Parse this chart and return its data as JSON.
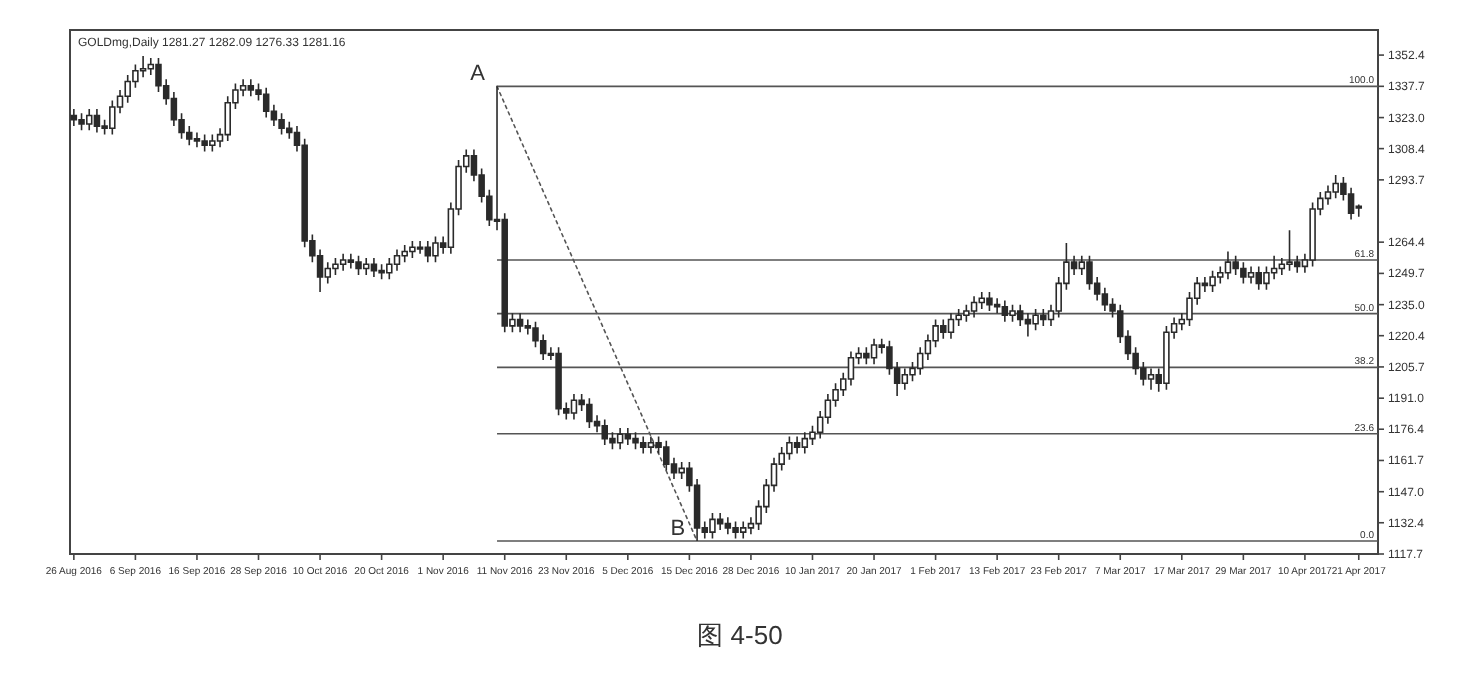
{
  "chart_data": {
    "type": "candlestick",
    "title": "GOLDmg,Daily  1281.27 1282.09 1276.33 1281.16",
    "categories": [
      "26 Aug 2016",
      null,
      null,
      null,
      null,
      null,
      null,
      null,
      "6 Sep 2016",
      null,
      null,
      null,
      null,
      null,
      null,
      null,
      "16 Sep 2016",
      null,
      null,
      null,
      null,
      null,
      null,
      null,
      "28 Sep 2016",
      null,
      null,
      null,
      null,
      null,
      null,
      null,
      "10 Oct 2016",
      null,
      null,
      null,
      null,
      null,
      null,
      null,
      "20 Oct 2016",
      null,
      null,
      null,
      null,
      null,
      null,
      null,
      "1 Nov 2016",
      null,
      null,
      null,
      null,
      null,
      null,
      null,
      "11 Nov 2016",
      null,
      null,
      null,
      null,
      null,
      null,
      null,
      "23 Nov 2016",
      null,
      null,
      null,
      null,
      null,
      null,
      null,
      "5 Dec 2016",
      null,
      null,
      null,
      null,
      null,
      null,
      null,
      "15 Dec 2016",
      null,
      null,
      null,
      null,
      null,
      null,
      null,
      "28 Dec 2016",
      null,
      null,
      null,
      null,
      null,
      null,
      null,
      "10 Jan 2017",
      null,
      null,
      null,
      null,
      null,
      null,
      null,
      "20 Jan 2017",
      null,
      null,
      null,
      null,
      null,
      null,
      null,
      "1 Feb 2017",
      null,
      null,
      null,
      null,
      null,
      null,
      null,
      "13 Feb 2017",
      null,
      null,
      null,
      null,
      null,
      null,
      null,
      "23 Feb 2017",
      null,
      null,
      null,
      null,
      null,
      null,
      null,
      "7 Mar 2017",
      null,
      null,
      null,
      null,
      null,
      null,
      null,
      "17 Mar 2017",
      null,
      null,
      null,
      null,
      null,
      null,
      null,
      "29 Mar 2017",
      null,
      null,
      null,
      null,
      null,
      null,
      null,
      "10 Apr 2017",
      null,
      null,
      null,
      null,
      null,
      null,
      "21 Apr 2017"
    ],
    "color": "#2a2a2a",
    "ohlc": [
      [
        1324,
        1327,
        1319,
        1322
      ],
      [
        1322,
        1325,
        1317,
        1320
      ],
      [
        1320,
        1327,
        1317,
        1324
      ],
      [
        1324,
        1327,
        1316,
        1319
      ],
      [
        1319,
        1322,
        1315,
        1318
      ],
      [
        1318,
        1331,
        1315,
        1328
      ],
      [
        1328,
        1336,
        1325,
        1333
      ],
      [
        1333,
        1343,
        1330,
        1340
      ],
      [
        1340,
        1348,
        1337,
        1345
      ],
      [
        1345,
        1352,
        1342,
        1346
      ],
      [
        1346,
        1351,
        1343,
        1348
      ],
      [
        1348,
        1351,
        1335,
        1338
      ],
      [
        1338,
        1341,
        1329,
        1332
      ],
      [
        1332,
        1335,
        1319,
        1322
      ],
      [
        1322,
        1325,
        1313,
        1316
      ],
      [
        1316,
        1319,
        1310,
        1313
      ],
      [
        1313,
        1316,
        1309,
        1312
      ],
      [
        1312,
        1315,
        1307,
        1310
      ],
      [
        1310,
        1315,
        1307,
        1312
      ],
      [
        1312,
        1318,
        1309,
        1315
      ],
      [
        1315,
        1333,
        1312,
        1330
      ],
      [
        1330,
        1339,
        1327,
        1336
      ],
      [
        1336,
        1341,
        1333,
        1338
      ],
      [
        1338,
        1341,
        1333,
        1336
      ],
      [
        1336,
        1339,
        1331,
        1334
      ],
      [
        1334,
        1337,
        1323,
        1326
      ],
      [
        1326,
        1329,
        1319,
        1322
      ],
      [
        1322,
        1325,
        1315,
        1318
      ],
      [
        1318,
        1321,
        1313,
        1316
      ],
      [
        1316,
        1319,
        1307,
        1310
      ],
      [
        1310,
        1313,
        1262,
        1265
      ],
      [
        1265,
        1268,
        1255,
        1258
      ],
      [
        1258,
        1261,
        1241,
        1248
      ],
      [
        1248,
        1255,
        1245,
        1252
      ],
      [
        1252,
        1257,
        1249,
        1254
      ],
      [
        1254,
        1259,
        1251,
        1256
      ],
      [
        1256,
        1259,
        1252,
        1255
      ],
      [
        1255,
        1258,
        1249,
        1252
      ],
      [
        1252,
        1257,
        1249,
        1254
      ],
      [
        1254,
        1257,
        1248,
        1251
      ],
      [
        1251,
        1254,
        1247,
        1250
      ],
      [
        1250,
        1257,
        1247,
        1254
      ],
      [
        1254,
        1261,
        1251,
        1258
      ],
      [
        1258,
        1263,
        1255,
        1260
      ],
      [
        1260,
        1265,
        1257,
        1262
      ],
      [
        1262,
        1265,
        1259,
        1262
      ],
      [
        1262,
        1265,
        1255,
        1258
      ],
      [
        1258,
        1267,
        1255,
        1264
      ],
      [
        1264,
        1267,
        1259,
        1262
      ],
      [
        1262,
        1283,
        1259,
        1280
      ],
      [
        1280,
        1303,
        1277,
        1300
      ],
      [
        1300,
        1308,
        1297,
        1305
      ],
      [
        1305,
        1308,
        1293,
        1296
      ],
      [
        1296,
        1299,
        1283,
        1286
      ],
      [
        1286,
        1289,
        1272,
        1275
      ],
      [
        1275,
        1337.7,
        1270,
        1275
      ],
      [
        1275,
        1278,
        1222,
        1225
      ],
      [
        1225,
        1231,
        1222,
        1228
      ],
      [
        1228,
        1231,
        1222,
        1225
      ],
      [
        1225,
        1228,
        1221,
        1224
      ],
      [
        1224,
        1227,
        1215,
        1218
      ],
      [
        1218,
        1221,
        1209,
        1212
      ],
      [
        1212,
        1215,
        1209,
        1212
      ],
      [
        1212,
        1215,
        1183,
        1186
      ],
      [
        1186,
        1189,
        1181,
        1184
      ],
      [
        1184,
        1193,
        1181,
        1190
      ],
      [
        1190,
        1193,
        1185,
        1188
      ],
      [
        1188,
        1191,
        1177,
        1180
      ],
      [
        1180,
        1183,
        1175,
        1178
      ],
      [
        1178,
        1181,
        1169,
        1172
      ],
      [
        1172,
        1175,
        1167,
        1170
      ],
      [
        1170,
        1177,
        1167,
        1174
      ],
      [
        1174,
        1177,
        1169,
        1172
      ],
      [
        1172,
        1175,
        1167,
        1170
      ],
      [
        1170,
        1173,
        1165,
        1168
      ],
      [
        1168,
        1173,
        1165,
        1170
      ],
      [
        1170,
        1173,
        1165,
        1168
      ],
      [
        1168,
        1171,
        1157,
        1160
      ],
      [
        1160,
        1163,
        1153,
        1156
      ],
      [
        1156,
        1161,
        1153,
        1158
      ],
      [
        1158,
        1161,
        1147,
        1150
      ],
      [
        1150,
        1153,
        1123.8,
        1130
      ],
      [
        1130,
        1133,
        1125,
        1128
      ],
      [
        1128,
        1137,
        1125,
        1134
      ],
      [
        1134,
        1137,
        1129,
        1132
      ],
      [
        1132,
        1135,
        1127,
        1130
      ],
      [
        1130,
        1133,
        1125,
        1128
      ],
      [
        1128,
        1133,
        1125,
        1130
      ],
      [
        1130,
        1135,
        1127,
        1132
      ],
      [
        1132,
        1143,
        1129,
        1140
      ],
      [
        1140,
        1153,
        1137,
        1150
      ],
      [
        1150,
        1163,
        1147,
        1160
      ],
      [
        1160,
        1168,
        1157,
        1165
      ],
      [
        1165,
        1173,
        1162,
        1170
      ],
      [
        1170,
        1173,
        1165,
        1168
      ],
      [
        1168,
        1175,
        1165,
        1172
      ],
      [
        1172,
        1178,
        1169,
        1175
      ],
      [
        1175,
        1185,
        1172,
        1182
      ],
      [
        1182,
        1193,
        1179,
        1190
      ],
      [
        1190,
        1198,
        1187,
        1195
      ],
      [
        1195,
        1203,
        1192,
        1200
      ],
      [
        1200,
        1213,
        1197,
        1210
      ],
      [
        1210,
        1215,
        1207,
        1212
      ],
      [
        1212,
        1215,
        1207,
        1210
      ],
      [
        1210,
        1219,
        1207,
        1216
      ],
      [
        1216,
        1219,
        1212,
        1215
      ],
      [
        1215,
        1218,
        1202,
        1205
      ],
      [
        1205,
        1208,
        1192,
        1198
      ],
      [
        1198,
        1205,
        1195,
        1202
      ],
      [
        1202,
        1208,
        1199,
        1205
      ],
      [
        1205,
        1215,
        1202,
        1212
      ],
      [
        1212,
        1221,
        1209,
        1218
      ],
      [
        1218,
        1228,
        1215,
        1225
      ],
      [
        1225,
        1228,
        1219,
        1222
      ],
      [
        1222,
        1231,
        1219,
        1228
      ],
      [
        1228,
        1233,
        1225,
        1230
      ],
      [
        1230,
        1235,
        1227,
        1232
      ],
      [
        1232,
        1239,
        1229,
        1236
      ],
      [
        1236,
        1241,
        1233,
        1238
      ],
      [
        1238,
        1241,
        1232,
        1235
      ],
      [
        1235,
        1238,
        1231,
        1234
      ],
      [
        1234,
        1237,
        1227,
        1230
      ],
      [
        1230,
        1235,
        1227,
        1232
      ],
      [
        1232,
        1235,
        1225,
        1228
      ],
      [
        1228,
        1231,
        1220,
        1226
      ],
      [
        1226,
        1233,
        1223,
        1230
      ],
      [
        1230,
        1233,
        1225,
        1228
      ],
      [
        1228,
        1235,
        1225,
        1232
      ],
      [
        1232,
        1248,
        1229,
        1245
      ],
      [
        1245,
        1264,
        1242,
        1255
      ],
      [
        1255,
        1258,
        1249,
        1252
      ],
      [
        1252,
        1258,
        1249,
        1255
      ],
      [
        1255,
        1258,
        1242,
        1245
      ],
      [
        1245,
        1248,
        1237,
        1240
      ],
      [
        1240,
        1243,
        1232,
        1235
      ],
      [
        1235,
        1238,
        1229,
        1232
      ],
      [
        1232,
        1235,
        1217,
        1220
      ],
      [
        1220,
        1223,
        1209,
        1212
      ],
      [
        1212,
        1215,
        1202,
        1205
      ],
      [
        1205,
        1208,
        1197,
        1200
      ],
      [
        1200,
        1205,
        1195,
        1202
      ],
      [
        1202,
        1205,
        1194,
        1198
      ],
      [
        1198,
        1225,
        1195,
        1222
      ],
      [
        1222,
        1229,
        1219,
        1226
      ],
      [
        1226,
        1231,
        1223,
        1228
      ],
      [
        1228,
        1241,
        1225,
        1238
      ],
      [
        1238,
        1248,
        1235,
        1245
      ],
      [
        1245,
        1248,
        1241,
        1244
      ],
      [
        1244,
        1251,
        1241,
        1248
      ],
      [
        1248,
        1253,
        1245,
        1250
      ],
      [
        1250,
        1260,
        1247,
        1255
      ],
      [
        1255,
        1258,
        1249,
        1252
      ],
      [
        1252,
        1255,
        1245,
        1248
      ],
      [
        1248,
        1253,
        1245,
        1250
      ],
      [
        1250,
        1253,
        1242,
        1245
      ],
      [
        1245,
        1253,
        1242,
        1250
      ],
      [
        1250,
        1258,
        1247,
        1252
      ],
      [
        1252,
        1257,
        1249,
        1254
      ],
      [
        1254,
        1270,
        1251,
        1255
      ],
      [
        1255,
        1258,
        1250,
        1253
      ],
      [
        1253,
        1259,
        1250,
        1256
      ],
      [
        1256,
        1283,
        1253,
        1280
      ],
      [
        1280,
        1288,
        1277,
        1285
      ],
      [
        1285,
        1291,
        1282,
        1288
      ],
      [
        1288,
        1296,
        1285,
        1292
      ],
      [
        1292,
        1295,
        1284,
        1287
      ],
      [
        1287,
        1290,
        1275,
        1278
      ],
      [
        1281.27,
        1282.09,
        1276.33,
        1281.16
      ]
    ],
    "series": [
      {
        "type": "line",
        "color": "#555555",
        "line_style": "dotted",
        "values": [
          null,
          null,
          null,
          null,
          null,
          null,
          null,
          null,
          null,
          null,
          null,
          null,
          null,
          null,
          null,
          null,
          null,
          null,
          null,
          null,
          null,
          null,
          null,
          null,
          null,
          null,
          null,
          null,
          null,
          null,
          null,
          null,
          null,
          null,
          null,
          null,
          null,
          null,
          null,
          null,
          null,
          null,
          null,
          null,
          null,
          null,
          null,
          null,
          null,
          null,
          null,
          null,
          null,
          null,
          null,
          1337.7,
          null,
          null,
          null,
          null,
          null,
          null,
          null,
          null,
          null,
          null,
          null,
          null,
          null,
          null,
          null,
          null,
          null,
          null,
          null,
          null,
          null,
          null,
          null,
          null,
          null,
          1123.8,
          null,
          null,
          null,
          null,
          null,
          null,
          null,
          null,
          null,
          null,
          null,
          null,
          null,
          null,
          null,
          null,
          null,
          null,
          null,
          null,
          null,
          null,
          null,
          null,
          null,
          null,
          null,
          null,
          null,
          null,
          null,
          null,
          null,
          null,
          null,
          null,
          null,
          null,
          null,
          null,
          null,
          null,
          null,
          null,
          null,
          null,
          null,
          null,
          null,
          null,
          null,
          null,
          null,
          null,
          null,
          null,
          null,
          null,
          null,
          null,
          null,
          null,
          null,
          null,
          null,
          null,
          null,
          null,
          null,
          null,
          null,
          null,
          null,
          null,
          null,
          null,
          null,
          null,
          null,
          null,
          null,
          null,
          null,
          null,
          null,
          null
        ]
      }
    ],
    "ref_lines": [
      {
        "axis": "y",
        "value": 1337.7,
        "color": "#555555"
      },
      {
        "axis": "y",
        "value": 1256.0,
        "color": "#555555"
      },
      {
        "axis": "y",
        "value": 1230.8,
        "color": "#555555"
      },
      {
        "axis": "y",
        "value": 1205.5,
        "color": "#555555"
      },
      {
        "axis": "y",
        "value": 1174.3,
        "color": "#555555"
      },
      {
        "axis": "y",
        "value": 1123.8,
        "color": "#555555"
      }
    ],
    "ylim": [
      1117.7,
      1364.2
    ],
    "yticks": [
      1352.4,
      1337.7,
      {
        "value": 1323.0,
        "label": "1323.0"
      },
      1308.4,
      1293.7,
      1264.4,
      1249.7,
      {
        "value": 1235.0,
        "label": "1235.0"
      },
      1220.4,
      1205.7,
      {
        "value": 1191.0,
        "label": "1191.0"
      },
      1176.4,
      1161.7,
      {
        "value": 1147.0,
        "label": "1147.0"
      },
      1132.4,
      1117.7
    ],
    "annotations": [
      "A",
      "B",
      {
        "text": "100.0",
        "y": 1337.7
      },
      {
        "text": "61.8",
        "y": 1256.0
      },
      {
        "text": "50.0",
        "y": 1230.8
      },
      {
        "text": "38.2",
        "y": 1205.5
      },
      {
        "text": "23.6",
        "y": 1174.3
      },
      {
        "text": "0.0",
        "y": 1123.8
      },
      "图 4-50"
    ]
  }
}
